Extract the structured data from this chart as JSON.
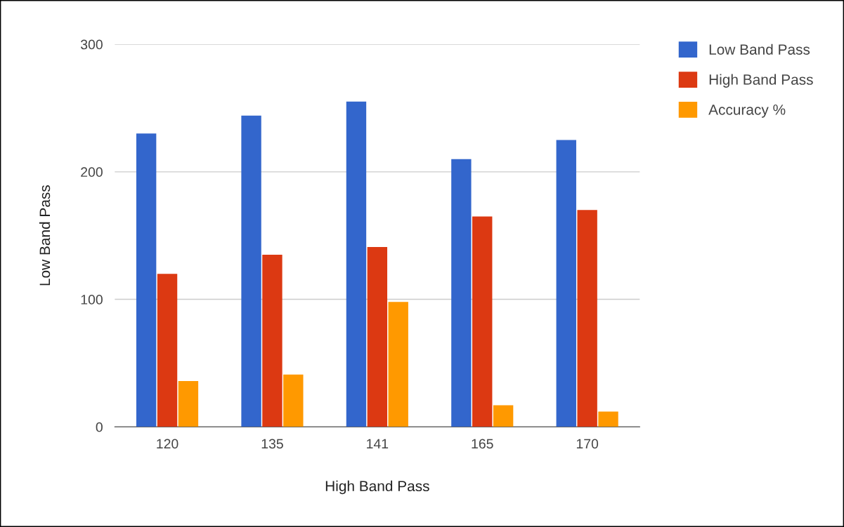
{
  "chart_data": {
    "type": "bar",
    "xlabel": "High Band Pass",
    "ylabel": "Low Band Pass",
    "categories": [
      "120",
      "135",
      "141",
      "165",
      "170"
    ],
    "series": [
      {
        "name": "Low Band Pass",
        "color": "#3366cc",
        "values": [
          230,
          244,
          255,
          210,
          225
        ]
      },
      {
        "name": "High Band Pass",
        "color": "#dc3912",
        "values": [
          120,
          135,
          141,
          165,
          170
        ]
      },
      {
        "name": "Accuracy %",
        "color": "#ff9900",
        "values": [
          36,
          41,
          98,
          17,
          12
        ]
      }
    ],
    "ylim": [
      0,
      300
    ],
    "yticks": [
      0,
      100,
      200,
      300
    ],
    "grid": "y",
    "legend": "top right"
  }
}
